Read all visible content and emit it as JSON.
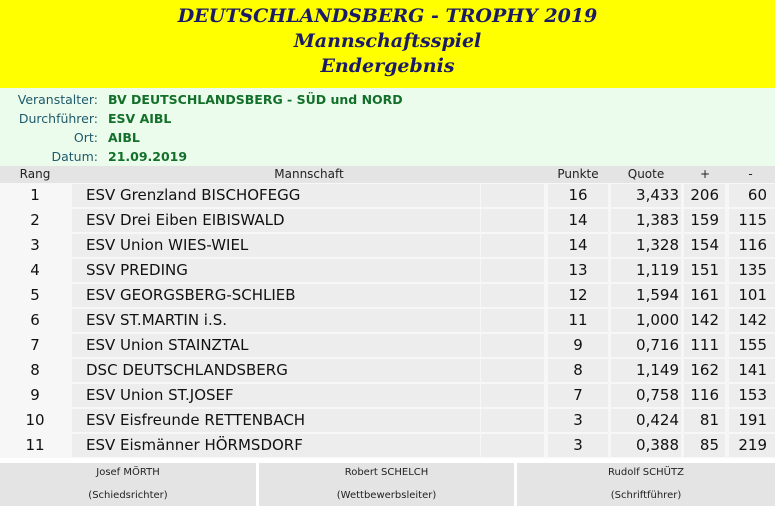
{
  "header": {
    "line1": "DEUTSCHLANDSBERG - TROPHY 2019",
    "line2": "Mannschaftsspiel",
    "line3": "Endergebnis"
  },
  "meta": [
    {
      "label": "Veranstalter:",
      "value": "BV DEUTSCHLANDSBERG - SÜD und NORD"
    },
    {
      "label": "Durchführer:",
      "value": "ESV AIBL"
    },
    {
      "label": "Ort:",
      "value": "AIBL"
    },
    {
      "label": "Datum:",
      "value": "21.09.2019"
    }
  ],
  "table": {
    "columns": {
      "rang": "Rang",
      "mannschaft": "Mannschaft",
      "punkte": "Punkte",
      "quote": "Quote",
      "plus": "+",
      "minus": "-"
    },
    "rows": [
      {
        "rang": "1",
        "mannschaft": "ESV Grenzland BISCHOFEGG",
        "punkte": "16",
        "quote": "3,433",
        "plus": "206",
        "minus": "60"
      },
      {
        "rang": "2",
        "mannschaft": "ESV Drei Eiben EIBISWALD",
        "punkte": "14",
        "quote": "1,383",
        "plus": "159",
        "minus": "115"
      },
      {
        "rang": "3",
        "mannschaft": "ESV Union WIES-WIEL",
        "punkte": "14",
        "quote": "1,328",
        "plus": "154",
        "minus": "116"
      },
      {
        "rang": "4",
        "mannschaft": "SSV PREDING",
        "punkte": "13",
        "quote": "1,119",
        "plus": "151",
        "minus": "135"
      },
      {
        "rang": "5",
        "mannschaft": "ESV GEORGSBERG-SCHLIEB",
        "punkte": "12",
        "quote": "1,594",
        "plus": "161",
        "minus": "101"
      },
      {
        "rang": "6",
        "mannschaft": "ESV ST.MARTIN i.S.",
        "punkte": "11",
        "quote": "1,000",
        "plus": "142",
        "minus": "142"
      },
      {
        "rang": "7",
        "mannschaft": "ESV Union STAINZTAL",
        "punkte": "9",
        "quote": "0,716",
        "plus": "111",
        "minus": "155"
      },
      {
        "rang": "8",
        "mannschaft": "DSC DEUTSCHLANDSBERG",
        "punkte": "8",
        "quote": "1,149",
        "plus": "162",
        "minus": "141"
      },
      {
        "rang": "9",
        "mannschaft": "ESV Union ST.JOSEF",
        "punkte": "7",
        "quote": "0,758",
        "plus": "116",
        "minus": "153"
      },
      {
        "rang": "10",
        "mannschaft": "ESV Eisfreunde RETTENBACH",
        "punkte": "3",
        "quote": "0,424",
        "plus": "81",
        "minus": "191"
      },
      {
        "rang": "11",
        "mannschaft": "ESV Eismänner HÖRMSDORF",
        "punkte": "3",
        "quote": "0,388",
        "plus": "85",
        "minus": "219"
      }
    ]
  },
  "footer": [
    {
      "name": "Josef MÖRTH",
      "role": "(Schiedsrichter)"
    },
    {
      "name": "Robert SCHELCH",
      "role": "(Wettbewerbsleiter)"
    },
    {
      "name": "Rudolf SCHÜTZ",
      "role": "(Schriftführer)"
    }
  ],
  "colors": {
    "header_bg": "#ffff00",
    "header_text": "#1a1a66",
    "meta_bg": "#ecfcec",
    "meta_value": "#13702a",
    "meta_label": "#1f5a6a"
  }
}
